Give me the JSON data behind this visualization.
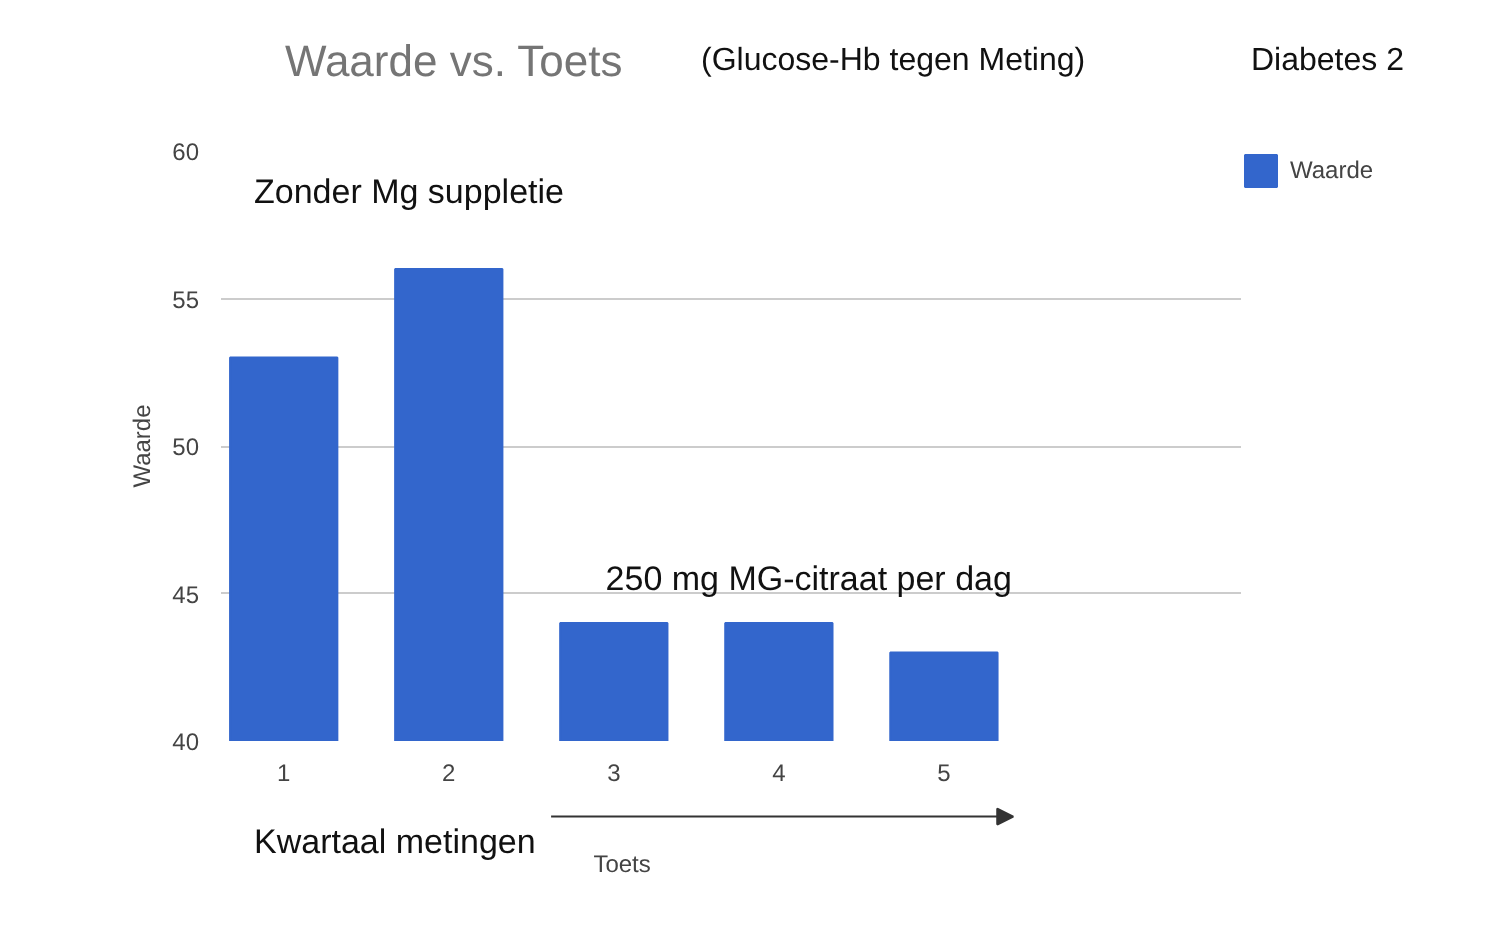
{
  "chart_data": {
    "type": "bar",
    "title": "Waarde vs. Toets",
    "xlabel": "Toets",
    "ylabel": "Waarde",
    "categories": [
      "1",
      "2",
      "3",
      "4",
      "5"
    ],
    "series": [
      {
        "name": "Waarde",
        "color": "#3366cc",
        "values": [
          53,
          56,
          44,
          44,
          43
        ]
      }
    ],
    "ylim": [
      40,
      60
    ],
    "yticks": [
      40,
      45,
      50,
      55,
      60
    ],
    "grid": "y",
    "legend": "top right",
    "annotations": [
      "(Glucose-Hb tegen Meting)",
      "Diabetes 2",
      "Zonder Mg suppletie",
      "250 mg MG-citraat per dag",
      "Kwartaal metingen"
    ]
  }
}
